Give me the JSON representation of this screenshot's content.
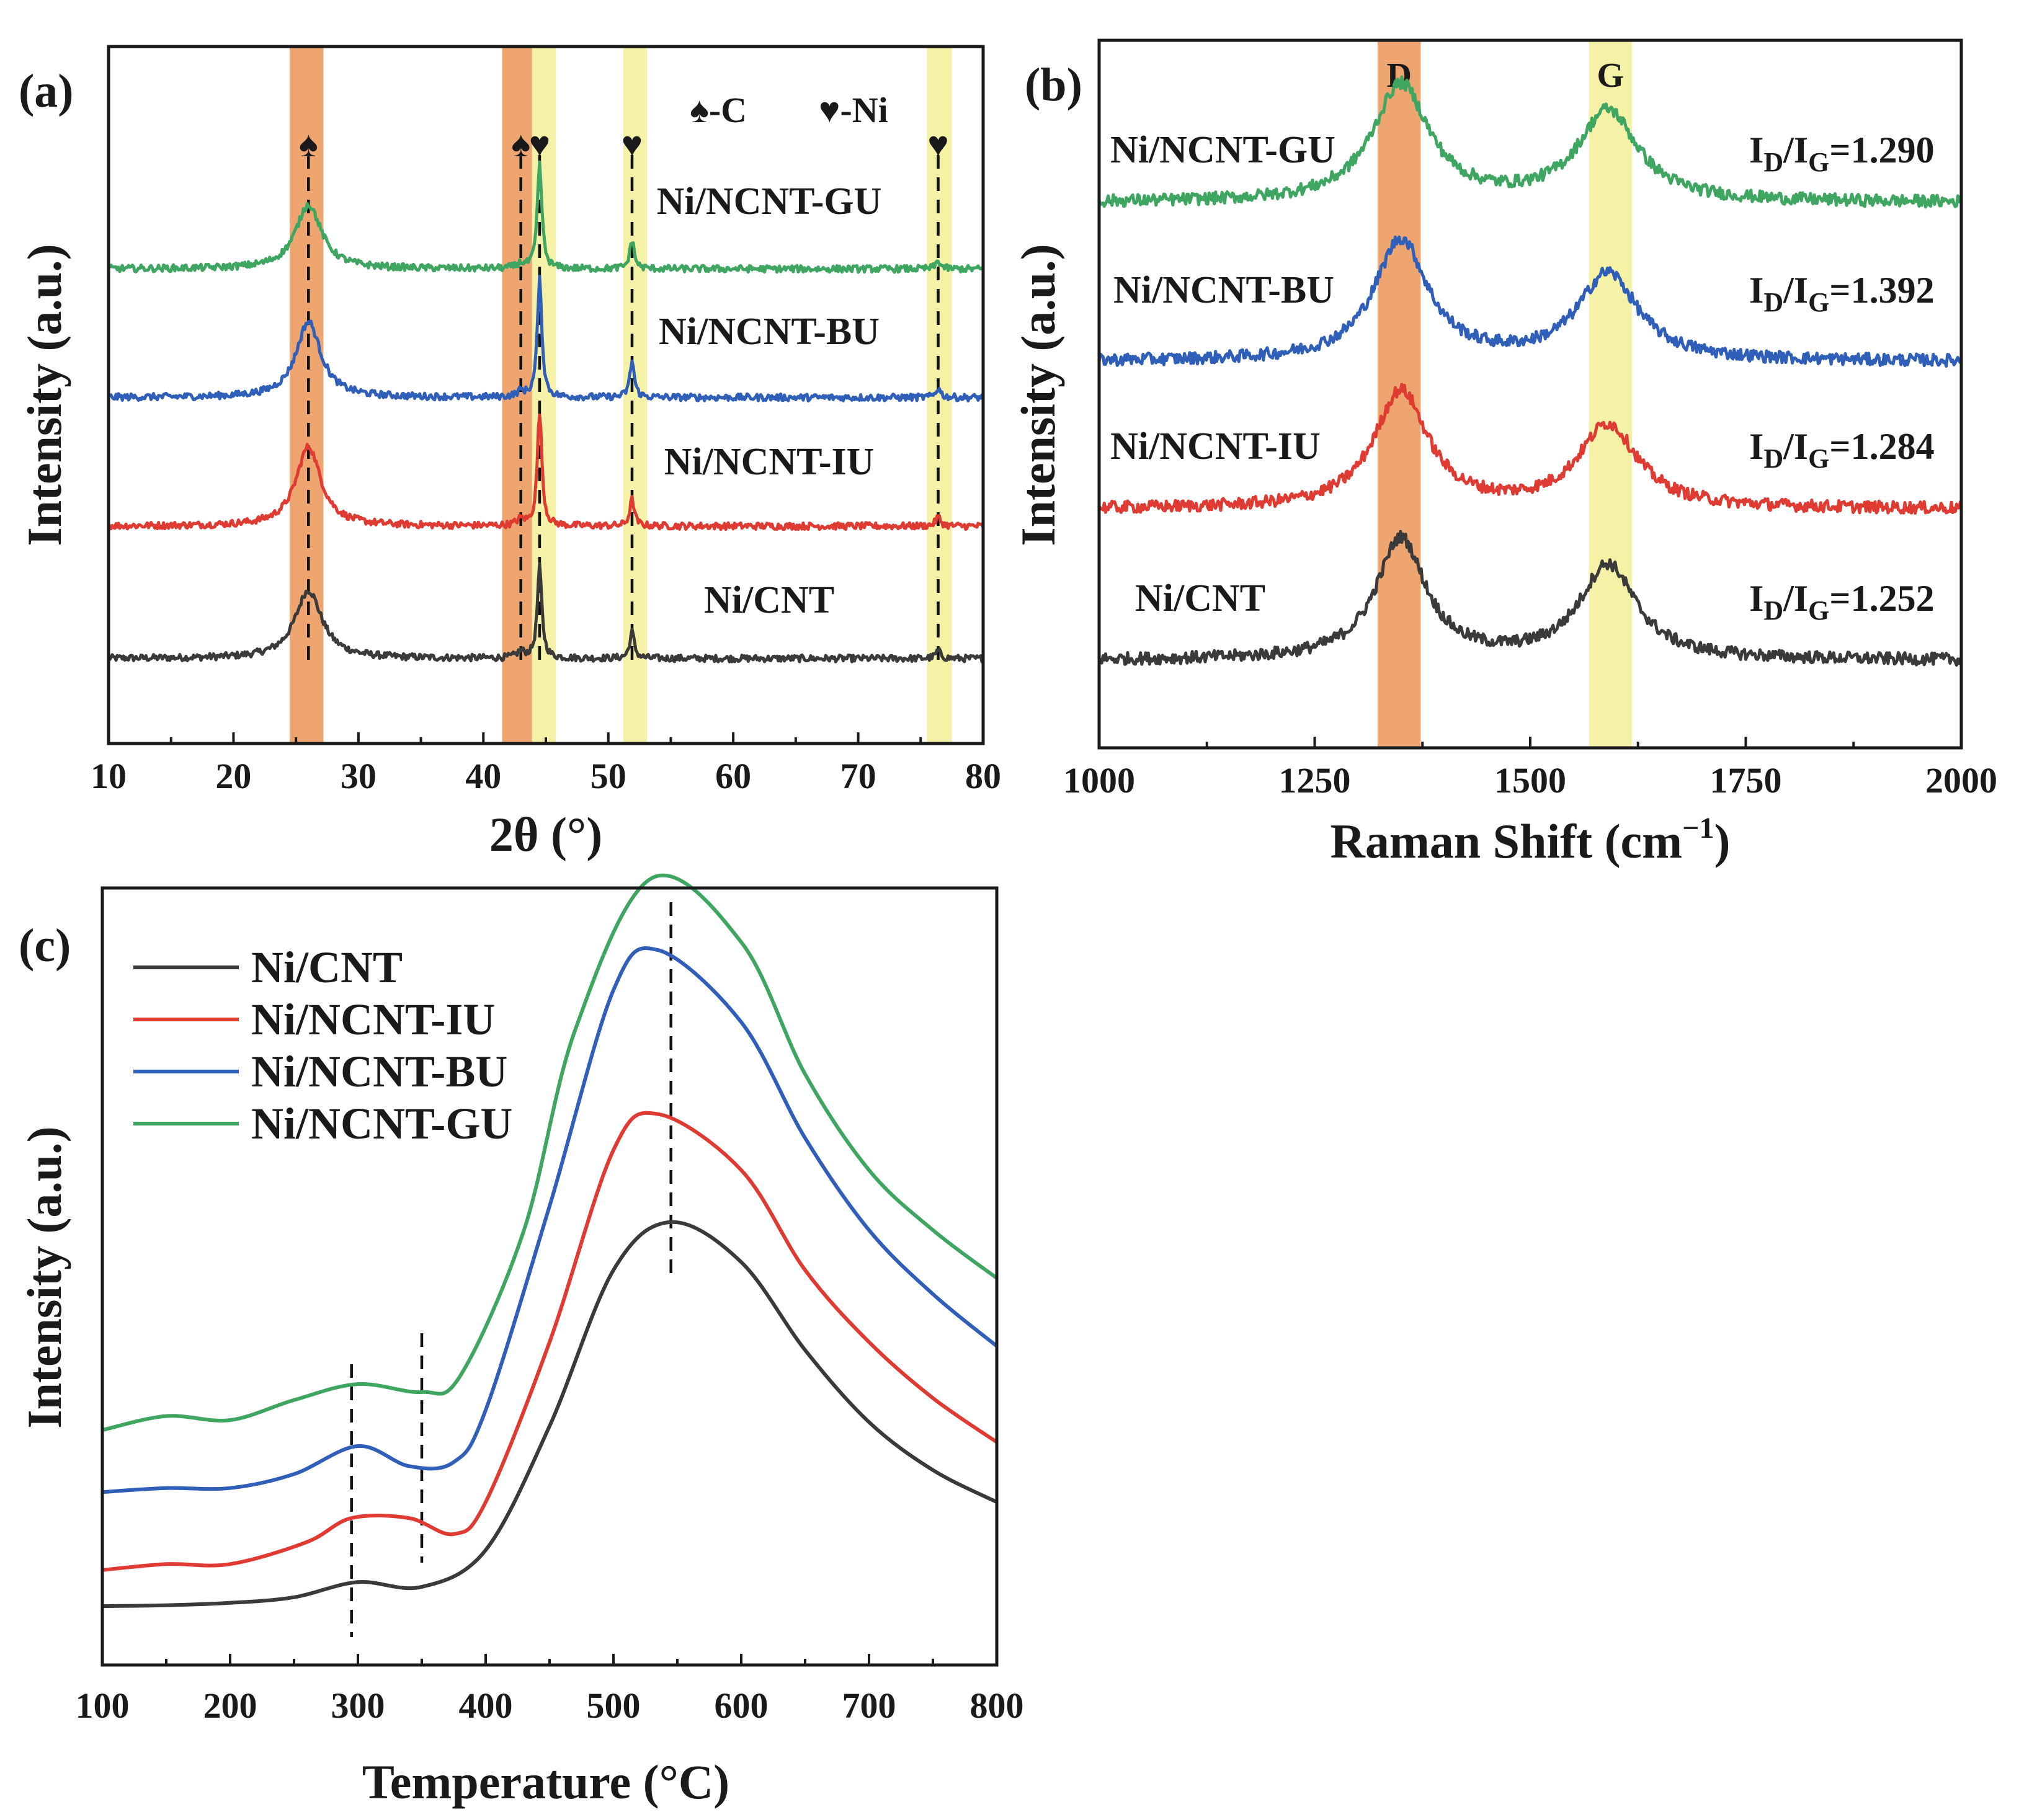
{
  "colors": {
    "Ni/CNT": "#3a3a3a",
    "Ni/NCNT-IU": "#e03b32",
    "Ni/NCNT-BU": "#2f5fb8",
    "Ni/NCNT-GU": "#3fa661",
    "band_carbon": "#efa56f",
    "band_nickel": "#f5f1a6"
  },
  "chart_data": [
    {
      "panel": "(a)",
      "type": "line",
      "title": "",
      "xlabel": "2θ (°)",
      "ylabel": "Intensity (a.u.)",
      "xlim": [
        10,
        80
      ],
      "xticks": [
        10,
        20,
        30,
        40,
        50,
        60,
        70,
        80
      ],
      "legend_text": [
        "♠-C",
        "♥-Ni"
      ],
      "highlight_bands": [
        {
          "x": [
            24.5,
            27.2
          ],
          "kind": "carbon"
        },
        {
          "x": [
            41.5,
            43.9
          ],
          "kind": "carbon"
        },
        {
          "x": [
            43.9,
            45.8
          ],
          "kind": "nickel"
        },
        {
          "x": [
            51.2,
            53.1
          ],
          "kind": "nickel"
        },
        {
          "x": [
            75.5,
            77.5
          ],
          "kind": "nickel"
        }
      ],
      "peak_markers": [
        {
          "x": 26.0,
          "symbol": "♠",
          "phase": "C"
        },
        {
          "x": 43.0,
          "symbol": "♠",
          "phase": "C"
        },
        {
          "x": 44.5,
          "symbol": "♥",
          "phase": "Ni"
        },
        {
          "x": 51.9,
          "symbol": "♥",
          "phase": "Ni"
        },
        {
          "x": 76.4,
          "symbol": "♥",
          "phase": "Ni"
        }
      ],
      "series": [
        {
          "name": "Ni/CNT",
          "baseline": 0.0,
          "peaks": [
            [
              26.0,
              0.9,
              1.3
            ],
            [
              43.0,
              0.08,
              0.4
            ],
            [
              44.5,
              1.2,
              0.22
            ],
            [
              51.9,
              0.35,
              0.22
            ],
            [
              76.4,
              0.1,
              0.25
            ]
          ]
        },
        {
          "name": "Ni/NCNT-IU",
          "baseline": 1.75,
          "peaks": [
            [
              26.0,
              1.05,
              1.2
            ],
            [
              43.0,
              0.08,
              0.4
            ],
            [
              44.5,
              1.5,
              0.22
            ],
            [
              51.9,
              0.35,
              0.22
            ],
            [
              76.4,
              0.12,
              0.25
            ]
          ]
        },
        {
          "name": "Ni/NCNT-BU",
          "baseline": 3.45,
          "peaks": [
            [
              26.0,
              1.0,
              1.2
            ],
            [
              43.0,
              0.07,
              0.4
            ],
            [
              44.5,
              1.55,
              0.22
            ],
            [
              51.9,
              0.48,
              0.22
            ],
            [
              76.4,
              0.12,
              0.25
            ]
          ]
        },
        {
          "name": "Ni/NCNT-GU",
          "baseline": 5.15,
          "peaks": [
            [
              26.0,
              0.85,
              1.25
            ],
            [
              43.0,
              0.06,
              0.4
            ],
            [
              44.5,
              1.38,
              0.22
            ],
            [
              51.9,
              0.38,
              0.22
            ],
            [
              76.4,
              0.1,
              0.25
            ]
          ]
        }
      ]
    },
    {
      "panel": "(b)",
      "type": "line",
      "title": "",
      "xlabel": "Raman Shift (cm",
      "xlabel_sup": "−1",
      "xlabel_close": ")",
      "ylabel": "Intensity (a.u.)",
      "xlim": [
        1000,
        2000
      ],
      "xticks": [
        1000,
        1250,
        1500,
        1750,
        2000
      ],
      "bands": [
        {
          "label": "D",
          "x": [
            1323,
            1373
          ],
          "kind": "carbon"
        },
        {
          "label": "G",
          "x": [
            1568,
            1618
          ],
          "kind": "nickel"
        }
      ],
      "series": [
        {
          "name": "Ni/CNT",
          "ratio": "1.252",
          "baseline": 0.0,
          "peaks": [
            [
              1350,
              1.6,
              35
            ],
            [
              1590,
              1.25,
              40
            ]
          ]
        },
        {
          "name": "Ni/NCNT-IU",
          "ratio": "1.284",
          "baseline": 2.0,
          "peaks": [
            [
              1350,
              1.55,
              38
            ],
            [
              1590,
              1.1,
              42
            ]
          ]
        },
        {
          "name": "Ni/NCNT-BU",
          "ratio": "1.392",
          "baseline": 3.95,
          "peaks": [
            [
              1350,
              1.6,
              38
            ],
            [
              1590,
              1.15,
              42
            ]
          ]
        },
        {
          "name": "Ni/NCNT-GU",
          "ratio": "1.290",
          "baseline": 6.05,
          "peaks": [
            [
              1350,
              1.55,
              40
            ],
            [
              1590,
              1.2,
              42
            ]
          ]
        }
      ],
      "ratio_prefix": "I",
      "ratio_sub_d": "D",
      "ratio_slash": "/I",
      "ratio_sub_g": "G",
      "ratio_eq": "="
    },
    {
      "panel": "(c)",
      "type": "line",
      "title": "",
      "xlabel": "Temperature (°C)",
      "ylabel": "Intensity (a.u.)",
      "xlim": [
        100,
        800
      ],
      "xticks": [
        100,
        200,
        300,
        400,
        500,
        600,
        700,
        800
      ],
      "reference_lines_x": [
        295,
        350,
        545
      ],
      "legend": [
        "Ni/CNT",
        "Ni/NCNT-IU",
        "Ni/NCNT-BU",
        "Ni/NCNT-GU"
      ],
      "series": [
        {
          "name": "Ni/CNT",
          "points": [
            [
              100,
              0.0
            ],
            [
              150,
              0.02
            ],
            [
              200,
              0.08
            ],
            [
              250,
              0.22
            ],
            [
              300,
              0.6
            ],
            [
              350,
              0.48
            ],
            [
              400,
              1.4
            ],
            [
              450,
              4.5
            ],
            [
              500,
              8.4
            ],
            [
              545,
              9.6
            ],
            [
              600,
              8.6
            ],
            [
              650,
              6.4
            ],
            [
              700,
              4.6
            ],
            [
              750,
              3.4
            ],
            [
              800,
              2.6
            ]
          ]
        },
        {
          "name": "Ni/NCNT-IU",
          "points": [
            [
              100,
              0.9
            ],
            [
              150,
              1.05
            ],
            [
              200,
              1.05
            ],
            [
              260,
              1.6
            ],
            [
              295,
              2.2
            ],
            [
              340,
              2.2
            ],
            [
              375,
              1.8
            ],
            [
              400,
              2.6
            ],
            [
              450,
              6.6
            ],
            [
              500,
              11.4
            ],
            [
              535,
              12.3
            ],
            [
              600,
              10.9
            ],
            [
              650,
              8.4
            ],
            [
              700,
              6.6
            ],
            [
              750,
              5.2
            ],
            [
              800,
              4.1
            ]
          ]
        },
        {
          "name": "Ni/NCNT-BU",
          "points": [
            [
              100,
              2.85
            ],
            [
              150,
              2.95
            ],
            [
              200,
              2.95
            ],
            [
              250,
              3.3
            ],
            [
              300,
              4.0
            ],
            [
              340,
              3.5
            ],
            [
              375,
              3.6
            ],
            [
              400,
              4.9
            ],
            [
              450,
              10.0
            ],
            [
              500,
              15.4
            ],
            [
              535,
              16.4
            ],
            [
              600,
              14.6
            ],
            [
              650,
              11.7
            ],
            [
              700,
              9.4
            ],
            [
              750,
              7.8
            ],
            [
              800,
              6.5
            ]
          ]
        },
        {
          "name": "Ni/NCNT-GU",
          "points": [
            [
              100,
              4.4
            ],
            [
              150,
              4.75
            ],
            [
              200,
              4.65
            ],
            [
              250,
              5.15
            ],
            [
              300,
              5.55
            ],
            [
              350,
              5.35
            ],
            [
              380,
              5.75
            ],
            [
              430,
              9.4
            ],
            [
              470,
              14.4
            ],
            [
              530,
              18.2
            ],
            [
              600,
              16.6
            ],
            [
              650,
              13.3
            ],
            [
              700,
              10.9
            ],
            [
              750,
              9.4
            ],
            [
              800,
              8.2
            ]
          ]
        }
      ]
    }
  ]
}
